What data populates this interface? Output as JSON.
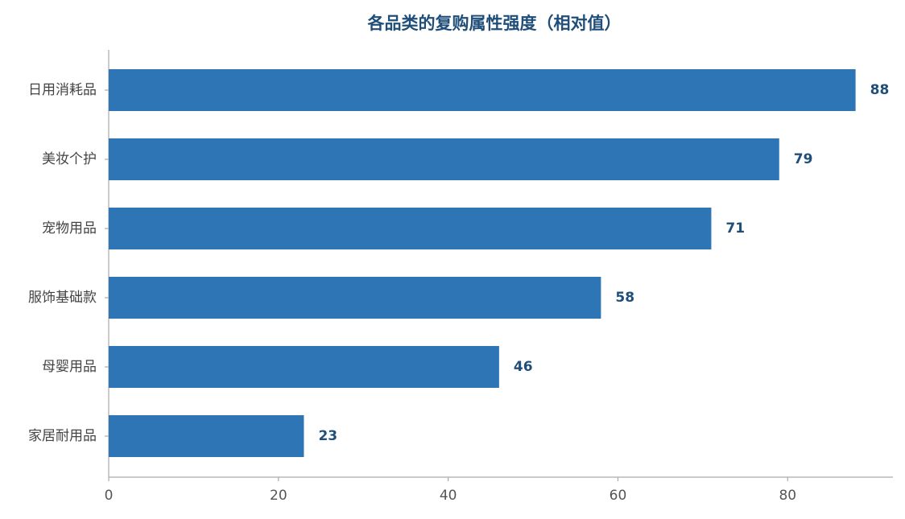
{
  "chart_data": {
    "type": "bar",
    "orientation": "horizontal",
    "title": "各品类的复购属性强度（相对值）",
    "categories": [
      "日用消耗品",
      "美妆个护",
      "宠物用品",
      "服饰基础款",
      "母婴用品",
      "家居耐用品"
    ],
    "values": [
      88,
      79,
      71,
      58,
      46,
      23
    ],
    "color": "#2e75b6",
    "xlim": [
      0,
      92.4
    ],
    "xticks": [
      0,
      20,
      40,
      60,
      80
    ],
    "grid": false
  }
}
